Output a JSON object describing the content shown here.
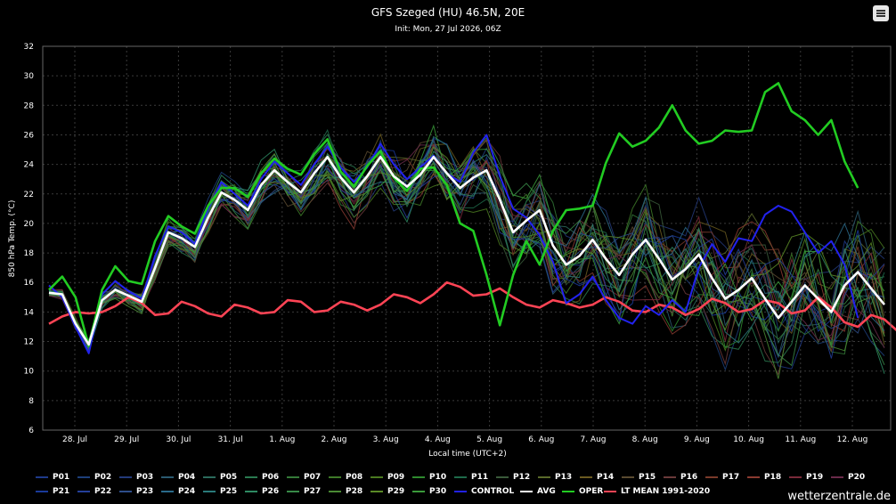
{
  "header": {
    "title": "GFS Szeged (HU) 46.5N, 20E",
    "subtitle": "Init: Mon, 27 Jul 2026, 06Z"
  },
  "watermark": "wetterzentrale.de",
  "menu": {
    "icon": "hamburger-menu-icon"
  },
  "colors": {
    "background": "#000000",
    "grid": "#3a3a3a",
    "avg": "#ffffff",
    "oper": "#22cc22",
    "control": "#2222ee",
    "ltmean": "#ff4455"
  },
  "chart_data": {
    "type": "line",
    "title": "GFS Szeged (HU) 46.5N, 20E",
    "subtitle": "Init: Mon, 27 Jul 2026, 06Z",
    "xlabel": "Local time (UTC+2)",
    "ylabel": "850 hPa Temp. (°C)",
    "ylim": [
      6,
      32
    ],
    "yticks": [
      6,
      8,
      10,
      12,
      14,
      16,
      18,
      20,
      22,
      24,
      26,
      28,
      30,
      32
    ],
    "xticks": [
      "28. Jul",
      "29. Jul",
      "30. Jul",
      "31. Jul",
      "1. Aug",
      "2. Aug",
      "3. Aug",
      "4. Aug",
      "5. Aug",
      "6. Aug",
      "7. Aug",
      "8. Aug",
      "9. Aug",
      "10. Aug",
      "11. Aug",
      "12. Aug"
    ],
    "grid": true,
    "legend_position": "bottom",
    "x_step_hours": 6,
    "x_start": "Mon, 27 Jul 2026 08:00 (UTC+2)",
    "series": [
      {
        "name": "OPER",
        "color": "#22cc22",
        "values": [
          15.5,
          16.4,
          15.0,
          11.7,
          15.5,
          17.1,
          16.1,
          15.9,
          18.8,
          20.5,
          19.8,
          19.3,
          21.2,
          22.4,
          22.4,
          21.8,
          23.4,
          24.4,
          23.7,
          23.3,
          24.7,
          25.7,
          23.5,
          22.5,
          23.9,
          24.9,
          23.1,
          22.2,
          23.7,
          23.8,
          22.6,
          20.0,
          19.5,
          16.5,
          13.1,
          16.5,
          18.8,
          17.2,
          19.5,
          20.9,
          21.0,
          21.2,
          24.1,
          26.1,
          25.2,
          25.6,
          26.5,
          28.0,
          26.3,
          25.4,
          25.6,
          26.3,
          26.2,
          26.3,
          28.9,
          29.5,
          27.6,
          27.0,
          26.0,
          27.0,
          24.2,
          22.4
        ]
      },
      {
        "name": "AVG",
        "color": "#ffffff",
        "values": [
          15.3,
          15.2,
          13.2,
          11.8,
          14.8,
          15.5,
          15.1,
          14.7,
          17.0,
          19.4,
          19.0,
          18.4,
          20.4,
          22.1,
          21.6,
          20.9,
          22.6,
          23.6,
          22.8,
          22.1,
          23.4,
          24.5,
          23.1,
          22.1,
          23.2,
          24.5,
          23.2,
          22.5,
          23.3,
          24.5,
          23.4,
          22.4,
          23.1,
          23.6,
          21.6,
          19.4,
          20.2,
          20.9,
          18.5,
          17.2,
          17.8,
          18.9,
          17.6,
          16.5,
          17.9,
          18.9,
          17.6,
          16.2,
          16.9,
          17.9,
          16.3,
          14.9,
          15.5,
          16.3,
          14.9,
          13.6,
          14.7,
          15.8,
          14.9,
          14.0,
          15.8,
          16.7,
          15.6,
          14.5
        ]
      },
      {
        "name": "CONTROL",
        "color": "#2222ee",
        "values": [
          15.8,
          15.0,
          13.0,
          11.2,
          15.2,
          16.1,
          15.4,
          14.9,
          17.8,
          19.8,
          19.4,
          18.6,
          21.0,
          22.8,
          22.0,
          21.2,
          23.0,
          24.2,
          23.4,
          22.6,
          24.0,
          25.2,
          23.8,
          22.8,
          23.8,
          25.4,
          24.0,
          23.0,
          23.8,
          24.6,
          23.4,
          22.8,
          24.8,
          26.0,
          23.2,
          21.0,
          20.4,
          19.2,
          17.4,
          14.6,
          15.2,
          16.4,
          14.8,
          13.6,
          13.2,
          14.4,
          13.8,
          14.8,
          14.0,
          17.0,
          18.6,
          17.4,
          19.0,
          18.8,
          20.6,
          21.2,
          20.8,
          19.4,
          18.0,
          18.8,
          17.2,
          13.6
        ]
      },
      {
        "name": "LT MEAN 1991-2020",
        "color": "#ff4455",
        "values": [
          13.2,
          13.7,
          14.0,
          13.9,
          14.0,
          14.4,
          15.0,
          14.6,
          13.8,
          13.9,
          14.7,
          14.4,
          13.9,
          13.7,
          14.5,
          14.3,
          13.9,
          14.0,
          14.8,
          14.7,
          14.0,
          14.1,
          14.7,
          14.5,
          14.1,
          14.5,
          15.2,
          15.0,
          14.6,
          15.2,
          16.0,
          15.7,
          15.1,
          15.2,
          15.6,
          15.0,
          14.5,
          14.3,
          14.8,
          14.6,
          14.3,
          14.5,
          15.0,
          14.7,
          14.1,
          14.0,
          14.5,
          14.3,
          13.8,
          14.2,
          14.9,
          14.6,
          14.0,
          14.2,
          14.8,
          14.6,
          13.9,
          14.1,
          15.0,
          14.3,
          13.3,
          13.0,
          13.8,
          13.5,
          12.7
        ]
      }
    ]
  },
  "legend": {
    "row1": [
      "P01",
      "P02",
      "P03",
      "P04",
      "P05",
      "P06",
      "P07",
      "P08",
      "P09",
      "P10",
      "P11",
      "P12",
      "P13",
      "P14",
      "P15",
      "P16",
      "P17",
      "P18",
      "P19",
      "P20"
    ],
    "row2": [
      "P21",
      "P22",
      "P23",
      "P24",
      "P25",
      "P26",
      "P27",
      "P28",
      "P29",
      "P30",
      "CONTROL",
      "AVG",
      "OPER",
      "LT MEAN 1991-2020"
    ]
  },
  "ensemble_colors": [
    "#1e3a8a",
    "#1d3f7a",
    "#233a7a",
    "#2a5a70",
    "#2b6a5c",
    "#2a7a50",
    "#347a38",
    "#3e7a28",
    "#4a7a20",
    "#2e8a2e",
    "#1e6a4a",
    "#3a5a3a",
    "#5a6a2a",
    "#6a5a20",
    "#5a4a30",
    "#6a3a3a",
    "#7a3a2a",
    "#8a3a30",
    "#7a2a3a",
    "#6a2a4a",
    "#1a3a9a",
    "#24409a",
    "#2e4e8a",
    "#2a6a8a",
    "#2a7a7a",
    "#2e8a62",
    "#388a48",
    "#4a8a34",
    "#5a8a26",
    "#3a9a3a"
  ]
}
